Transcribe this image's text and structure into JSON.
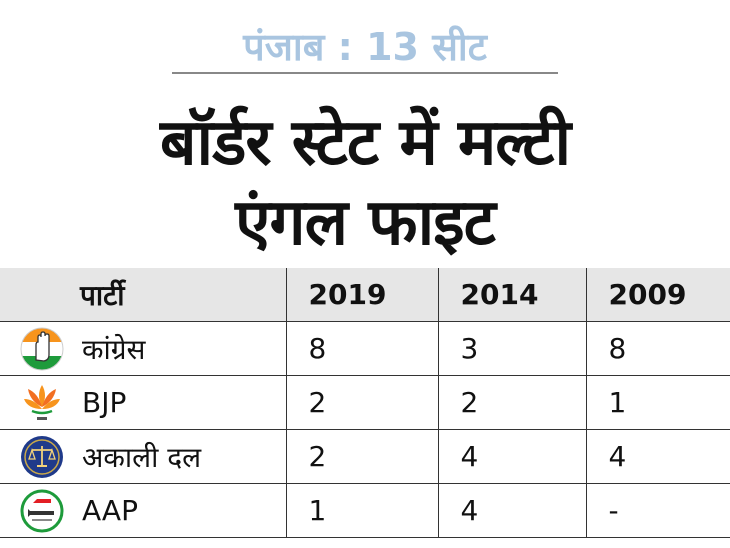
{
  "header": {
    "subtitle": "पंजाब : 13 सीट",
    "headline_line1": "बॉर्डर स्टेट में मल्टी",
    "headline_line2": "एंगल फाइट"
  },
  "table": {
    "columns": [
      "पार्टी",
      "2019",
      "2014",
      "2009"
    ],
    "rows": [
      {
        "party": "कांग्रेस",
        "logo": "congress-hand-logo",
        "v2019": "8",
        "v2014": "3",
        "v2009": "8"
      },
      {
        "party": "BJP",
        "logo": "bjp-lotus-logo",
        "v2019": "2",
        "v2014": "2",
        "v2009": "1"
      },
      {
        "party": "अकाली दल",
        "logo": "akali-dal-scales-logo",
        "v2019": "2",
        "v2014": "4",
        "v2009": "4"
      },
      {
        "party": "AAP",
        "logo": "aap-broom-logo",
        "v2019": "1",
        "v2014": "4",
        "v2009": "-"
      }
    ]
  },
  "colors": {
    "subtitle": "#a9c5e0",
    "header_bg": "#e6e6e6",
    "saffron": "#f7941d",
    "green": "#1e9b3b",
    "akali_blue": "#1f3a8a"
  }
}
